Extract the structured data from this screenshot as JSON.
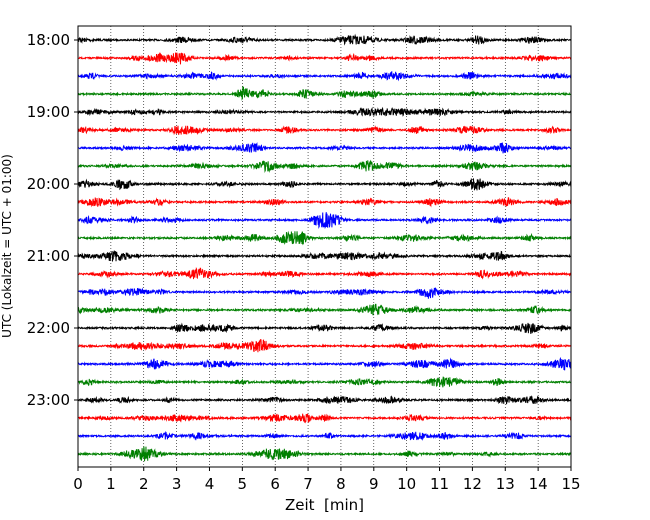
{
  "chart_data": {
    "type": "line",
    "title": "",
    "xlabel": "Zeit  [min]",
    "ylabel": "UTC (Lokalzeit = UTC + 01:00)",
    "xlim": [
      0,
      15
    ],
    "x_ticks": [
      "0",
      "1",
      "2",
      "3",
      "4",
      "5",
      "6",
      "7",
      "8",
      "9",
      "10",
      "11",
      "12",
      "13",
      "14",
      "15"
    ],
    "y_tick_labels": [
      "18:00",
      "19:00",
      "20:00",
      "21:00",
      "22:00",
      "23:00"
    ],
    "trace_start": "18:00",
    "trace_interval_minutes": 15,
    "trace_count": 24,
    "trace_colors": [
      "#000000",
      "#ff0000",
      "#0000ff",
      "#008000"
    ],
    "grid": "vertical dotted"
  }
}
